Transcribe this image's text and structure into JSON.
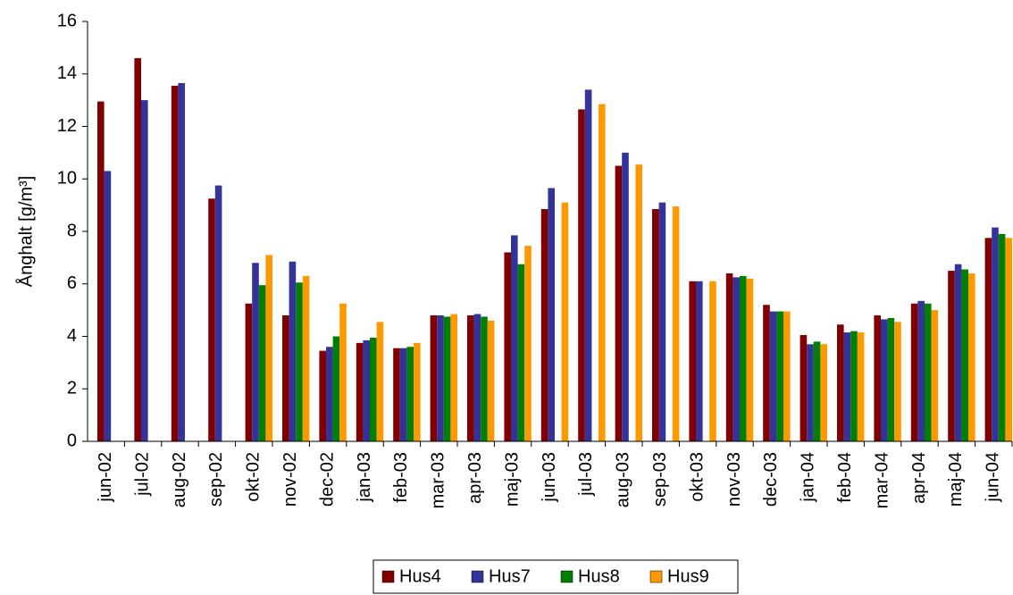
{
  "chart_data": {
    "type": "bar",
    "y_label": "Ånghalt [g/m³]",
    "categories": [
      "jun-02",
      "jul-02",
      "aug-02",
      "sep-02",
      "okt-02",
      "nov-02",
      "dec-02",
      "jan-03",
      "feb-03",
      "mar-03",
      "apr-03",
      "maj-03",
      "jun-03",
      "jul-03",
      "aug-03",
      "sep-03",
      "okt-03",
      "nov-03",
      "dec-03",
      "jan-04",
      "feb-04",
      "mar-04",
      "apr-04",
      "maj-04",
      "jun-04"
    ],
    "series": [
      {
        "name": "Hus4",
        "color": "#800000",
        "values": [
          12.95,
          14.6,
          13.55,
          9.25,
          5.25,
          4.8,
          3.45,
          3.75,
          3.55,
          4.8,
          4.8,
          7.2,
          8.85,
          12.65,
          10.5,
          8.85,
          6.1,
          6.4,
          5.2,
          4.05,
          4.45,
          4.8,
          5.25,
          6.5,
          7.75
        ]
      },
      {
        "name": "Hus7",
        "color": "#333399",
        "values": [
          10.3,
          13.0,
          13.65,
          9.75,
          6.8,
          6.85,
          3.6,
          3.85,
          3.55,
          4.8,
          4.85,
          7.85,
          9.65,
          13.4,
          11.0,
          9.1,
          6.1,
          6.25,
          4.95,
          3.7,
          4.15,
          4.65,
          5.35,
          6.75,
          8.15
        ]
      },
      {
        "name": "Hus8",
        "color": "#008000",
        "values": [
          null,
          null,
          null,
          null,
          5.95,
          6.05,
          4.0,
          3.95,
          3.6,
          4.75,
          4.75,
          6.75,
          null,
          null,
          null,
          null,
          null,
          6.3,
          4.95,
          3.8,
          4.2,
          4.7,
          5.25,
          6.55,
          7.9
        ]
      },
      {
        "name": "Hus9",
        "color": "#ff9900",
        "values": [
          null,
          null,
          null,
          null,
          7.1,
          6.3,
          5.25,
          4.55,
          3.75,
          4.85,
          4.6,
          7.45,
          9.1,
          12.85,
          10.55,
          8.95,
          6.1,
          6.2,
          4.95,
          3.7,
          4.15,
          4.55,
          5.0,
          6.4,
          7.75
        ]
      }
    ],
    "ylim": [
      0,
      16
    ],
    "yticks": [
      0,
      2,
      4,
      6,
      8,
      10,
      12,
      14,
      16
    ]
  }
}
